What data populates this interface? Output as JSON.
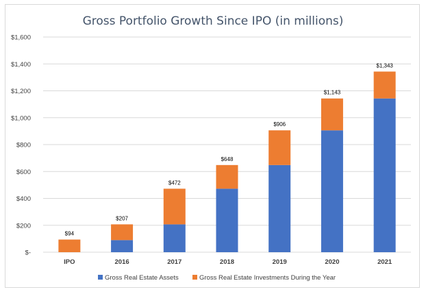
{
  "chart_data": {
    "type": "bar",
    "stacked": true,
    "title": "Gross Portfolio Growth Since IPO (in millions)",
    "categories": [
      "IPO",
      "2016",
      "2017",
      "2018",
      "2019",
      "2020",
      "2021"
    ],
    "series": [
      {
        "name": "Gross Real Estate Assets",
        "color": "#4472c4",
        "values": [
          0,
          90,
          207,
          472,
          648,
          906,
          1143
        ]
      },
      {
        "name": "Gross Real Estate Investments During the Year",
        "color": "#ed7d31",
        "values": [
          94,
          117,
          265,
          176,
          258,
          237,
          200
        ]
      }
    ],
    "totals": [
      94,
      207,
      472,
      648,
      906,
      1143,
      1343
    ],
    "data_labels": [
      "$94",
      "$207",
      "$472",
      "$648",
      "$906",
      "$1,143",
      "$1,343"
    ],
    "ylim": [
      0,
      1600
    ],
    "yticks": [
      0,
      200,
      400,
      600,
      800,
      1000,
      1200,
      1400,
      1600
    ],
    "ytick_labels": [
      "$-",
      "$200",
      "$400",
      "$600",
      "$800",
      "$1,000",
      "$1,200",
      "$1,400",
      "$1,600"
    ],
    "grid": true,
    "legend_position": "bottom",
    "xlabel": "",
    "ylabel": ""
  }
}
